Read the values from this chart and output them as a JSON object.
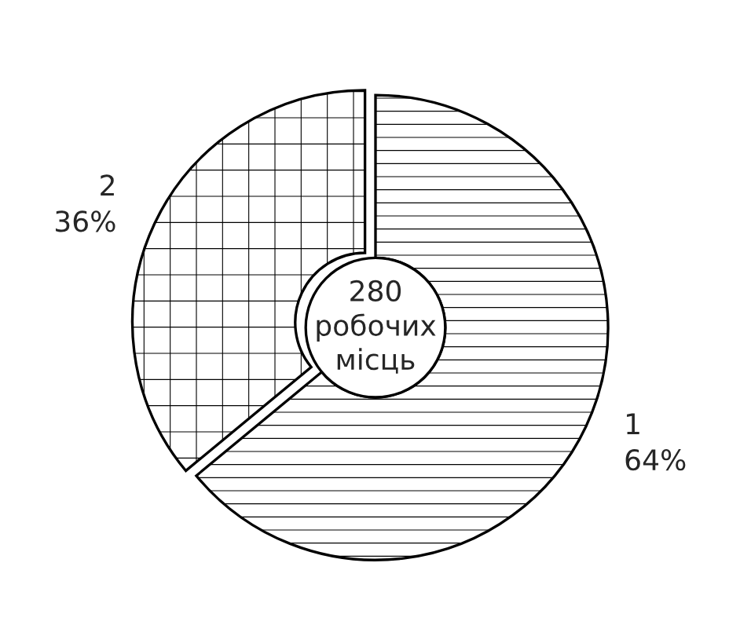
{
  "chart_data": {
    "type": "donut",
    "categories": [
      "1",
      "2"
    ],
    "values": [
      64,
      36
    ],
    "colors": [
      "#000000",
      "#000000"
    ],
    "value_labels": [
      "64%",
      "36%"
    ],
    "annotations": [
      "280\nробочих\nмісць"
    ]
  }
}
